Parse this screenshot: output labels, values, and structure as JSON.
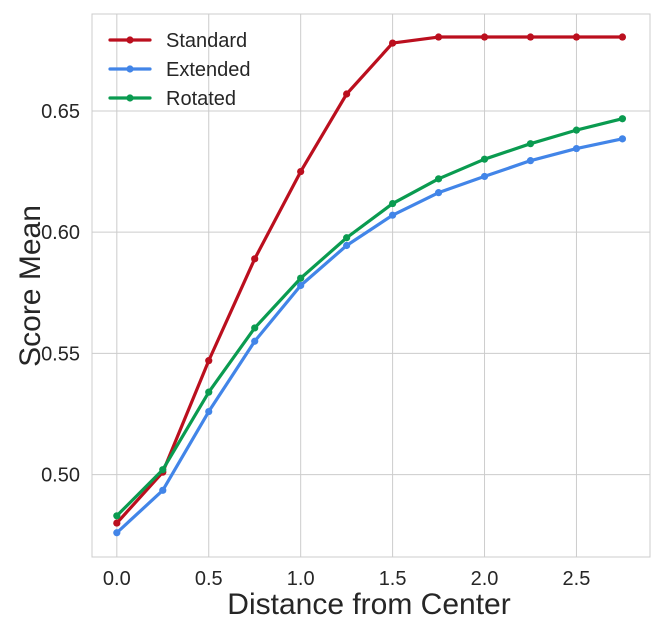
{
  "chart_data": {
    "type": "line",
    "title": "",
    "xlabel": "Distance from Center",
    "ylabel": "Score Mean",
    "xlim": [
      -0.135,
      2.9
    ],
    "ylim": [
      0.466,
      0.69
    ],
    "x_ticks": [
      0.0,
      0.5,
      1.0,
      1.5,
      2.0,
      2.5
    ],
    "x_tick_labels": [
      "0.0",
      "0.5",
      "1.0",
      "1.5",
      "2.0",
      "2.5"
    ],
    "y_ticks": [
      0.5,
      0.55,
      0.6,
      0.65
    ],
    "y_tick_labels": [
      "0.50",
      "0.55",
      "0.60",
      "0.65"
    ],
    "grid": true,
    "legend_position": "top-left",
    "x": [
      0.0,
      0.25,
      0.5,
      0.75,
      1.0,
      1.25,
      1.5,
      1.75,
      2.0,
      2.25,
      2.5,
      2.75
    ],
    "series": [
      {
        "name": "Standard",
        "color": "#bb0f1e",
        "values": [
          0.48,
          0.501,
          0.547,
          0.589,
          0.625,
          0.657,
          0.678,
          0.6805,
          0.6805,
          0.6805,
          0.6805,
          0.6805
        ]
      },
      {
        "name": "Extended",
        "color": "#4285e8",
        "values": [
          0.476,
          0.4935,
          0.526,
          0.555,
          0.578,
          0.5945,
          0.607,
          0.6163,
          0.623,
          0.6295,
          0.6345,
          0.6385
        ]
      },
      {
        "name": "Rotated",
        "color": "#0a9b50",
        "values": [
          0.483,
          0.502,
          0.534,
          0.5605,
          0.581,
          0.5977,
          0.6118,
          0.622,
          0.6301,
          0.6365,
          0.6421,
          0.6468
        ]
      }
    ]
  }
}
